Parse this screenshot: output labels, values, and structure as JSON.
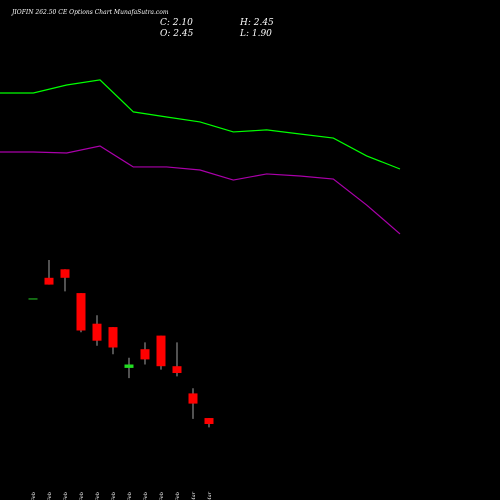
{
  "chart_data": {
    "type": "candlestick",
    "title": "JIOFIN 262.50 CE Options Chart MunafaSutra.com",
    "ohlc_labels": {
      "close": "C: 2.10",
      "high": "H: 2.45",
      "open": "O: 2.45",
      "low": "L: 1.90"
    },
    "categories": [
      "16 Feb",
      "17 Feb",
      "18 Feb",
      "19 Feb",
      "20 Feb",
      "23 Feb",
      "24 Feb",
      "25 Feb",
      "26 Feb",
      "27 Feb",
      "02 Mar",
      "04 Mar"
    ],
    "open": [
      9.5,
      10.7,
      11.2,
      9.8,
      8.0,
      7.8,
      5.4,
      6.5,
      7.3,
      5.5,
      3.9,
      2.45
    ],
    "high": [
      9.5,
      11.75,
      11.2,
      9.8,
      8.5,
      7.8,
      6.0,
      6.9,
      7.3,
      6.9,
      4.2,
      2.45
    ],
    "low": [
      9.5,
      10.3,
      9.9,
      7.5,
      6.7,
      6.2,
      4.8,
      5.6,
      5.3,
      4.9,
      2.4,
      1.9
    ],
    "close": [
      9.5,
      10.3,
      10.7,
      7.6,
      7.0,
      6.6,
      5.6,
      5.9,
      5.5,
      5.1,
      3.3,
      2.1
    ],
    "up_color": "#22dd22",
    "down_color": "#ff0000",
    "ylim": [
      1.5,
      27
    ],
    "lines": [
      {
        "color": "#00ff00",
        "x": [
          0,
          1,
          2,
          3,
          4,
          5,
          6,
          7,
          8,
          9,
          10,
          11,
          12
        ],
        "values": [
          21.57,
          21.57,
          22.04,
          22.34,
          20.46,
          20.16,
          19.87,
          19.28,
          19.4,
          19.16,
          18.92,
          17.87,
          17.1
        ]
      },
      {
        "color": "#aa00aa",
        "x": [
          0,
          1,
          2,
          3,
          4,
          5,
          6,
          7,
          8,
          9,
          10,
          11,
          12
        ],
        "values": [
          18.1,
          18.1,
          18.04,
          18.45,
          17.22,
          17.22,
          17.04,
          16.45,
          16.81,
          16.69,
          16.51,
          14.98,
          13.28
        ]
      }
    ],
    "line_xlim": [
      0,
      12
    ]
  }
}
